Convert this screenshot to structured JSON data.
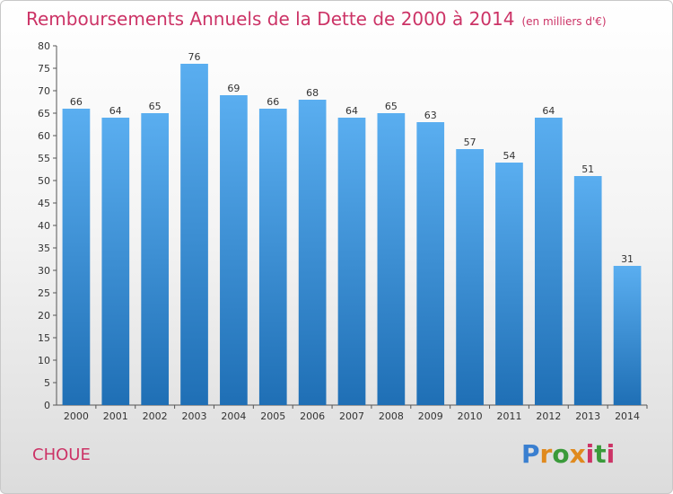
{
  "title": "Remboursements Annuels de la Dette de 2000 à 2014",
  "unit": "(en milliers d'€)",
  "commune": "CHOUE",
  "logo": [
    "P",
    "r",
    "o",
    "x",
    "i",
    "t",
    "i"
  ],
  "colors": {
    "title": "#cc3366",
    "bar_top": "#5aaef0",
    "bar_bottom": "#1f6fb5",
    "logo": [
      "#3a7fd0",
      "#e08a1e",
      "#3a9a3a",
      "#e08a1e",
      "#cc3366",
      "#3a9a3a",
      "#cc3366"
    ]
  },
  "chart_data": {
    "type": "bar",
    "title": "Remboursements Annuels de la Dette de 2000 à 2014",
    "xlabel": "",
    "ylabel": "",
    "categories": [
      "2000",
      "2001",
      "2002",
      "2003",
      "2004",
      "2005",
      "2006",
      "2007",
      "2008",
      "2009",
      "2010",
      "2011",
      "2012",
      "2013",
      "2014"
    ],
    "values": [
      66,
      64,
      65,
      76,
      69,
      66,
      68,
      64,
      65,
      63,
      57,
      54,
      64,
      51,
      31
    ],
    "ylim": [
      0,
      80
    ],
    "yticks": [
      0,
      5,
      10,
      15,
      20,
      25,
      30,
      35,
      40,
      45,
      50,
      55,
      60,
      65,
      70,
      75,
      80
    ],
    "grid": false,
    "data_labels": true
  }
}
